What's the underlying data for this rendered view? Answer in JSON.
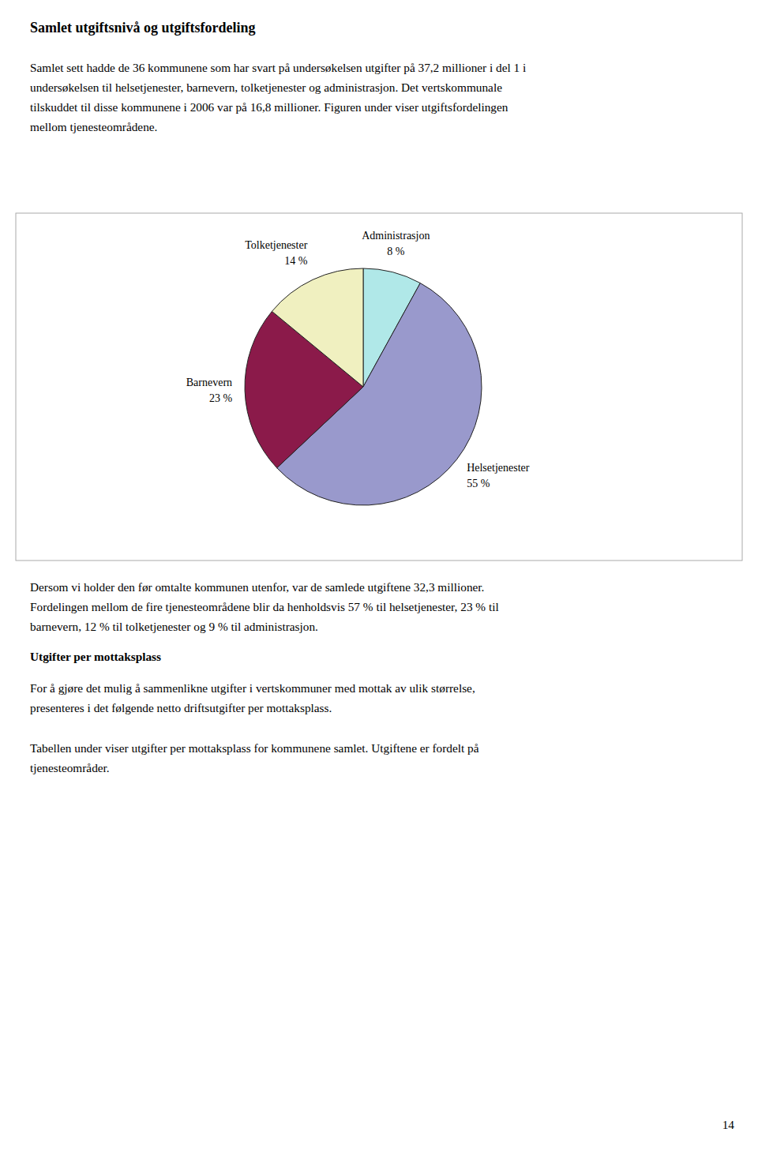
{
  "page": {
    "title": "Samlet utgiftsnivå og utgiftsfordeling",
    "intro": "Samlet sett hadde de 36 kommunene som har svart på undersøkelsen utgifter på 37,2 millioner i del 1 i\nundersøkelsen til helsetjenester, barnevern, tolketjenester og administrasjon. Det vertskommunale\ntilskuddet til disse kommunene i 2006 var på 16,8 millioner. Figuren under viser utgiftsfordelingen\nmellom tjenesteområdene.",
    "after_chart": "Dersom vi holder den før omtalte kommunen utenfor, var de samlede utgiftene 32,3 millioner.\nFordelingen mellom de fire tjenesteområdene blir da henholdsvis 57 % til helsetjenester, 23 % til\nbarnevern, 12 % til tolketjenester og 9 % til administrasjon.",
    "heading": "Utgifter per mottaksplass",
    "body": [
      "For å gjøre det mulig å sammenlikne utgifter i vertskommuner med mottak av ulik størrelse,\npresenteres i det følgende netto driftsutgifter per mottaksplass.",
      "Tabellen under viser utgifter per mottaksplass for kommunene samlet. Utgiftene er fordelt på\ntjenesteområder."
    ],
    "page_number": "14"
  },
  "chart_data": {
    "type": "pie",
    "categories": [
      "Administrasjon",
      "Helsetjenester",
      "Barnevern",
      "Tolketjenester"
    ],
    "values": [
      8,
      55,
      23,
      14
    ],
    "value_labels": [
      "8 %",
      "55 %",
      "23 %",
      "14 %"
    ],
    "colors": [
      "#b0e8e8",
      "#9999cc",
      "#8b1a4a",
      "#f0f0c0"
    ],
    "data_labels": true
  }
}
